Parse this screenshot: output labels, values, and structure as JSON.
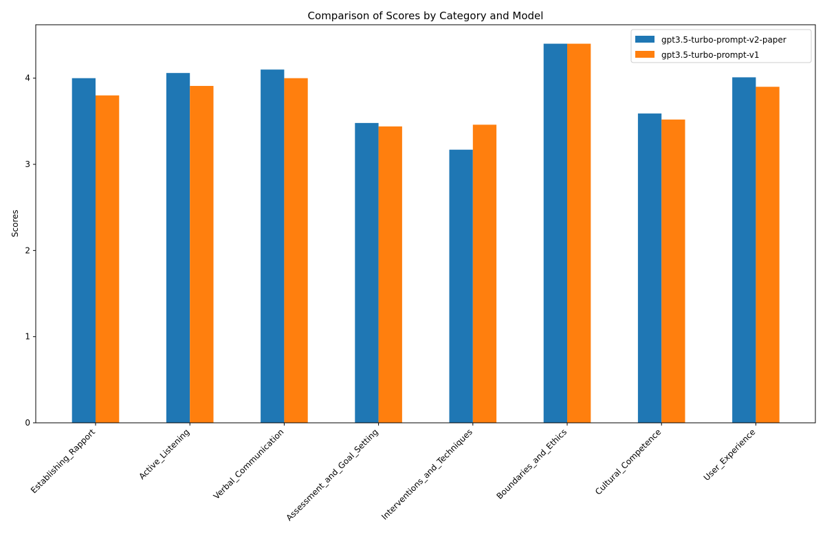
{
  "chart_data": {
    "type": "bar",
    "title": "Comparison of Scores by Category and Model",
    "xlabel": "",
    "ylabel": "Scores",
    "ylim": [
      0,
      4.62
    ],
    "yticks": [
      0,
      1,
      2,
      3,
      4
    ],
    "grid": false,
    "legend_position": "top-right",
    "categories": [
      "Establishing_Rapport",
      "Active_Listening",
      "Verbal_Communication",
      "Assessment_and_Goal_Setting",
      "Interventions_and_Techniques",
      "Boundaries_and_Ethics",
      "Cultural_Competence",
      "User_Experience"
    ],
    "series": [
      {
        "name": "gpt3.5-turbo-prompt-v2-paper",
        "color": "#1f77b4",
        "values": [
          4.0,
          4.06,
          4.1,
          3.48,
          3.17,
          4.4,
          3.59,
          4.01
        ]
      },
      {
        "name": "gpt3.5-turbo-prompt-v1",
        "color": "#ff7f0e",
        "values": [
          3.8,
          3.91,
          4.0,
          3.44,
          3.46,
          4.4,
          3.52,
          3.9
        ]
      }
    ]
  }
}
